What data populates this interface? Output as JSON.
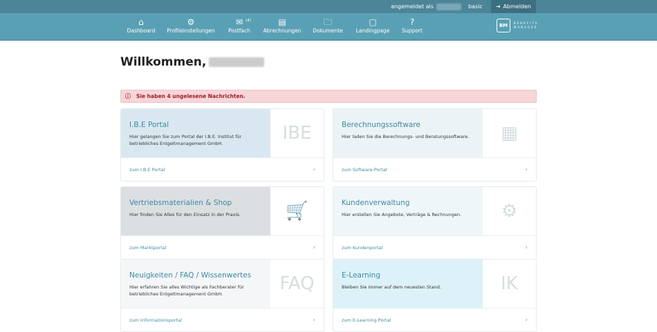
{
  "topbar": {
    "logged_in_as": "angemeldet als",
    "role": "basic",
    "logout": "Abmelden"
  },
  "nav": [
    {
      "label": "Dashboard",
      "icon": "home-icon",
      "glyph": "⌂"
    },
    {
      "label": "Profileinstellungen",
      "icon": "gears-icon",
      "glyph": "⚙"
    },
    {
      "label": "Postfach",
      "icon": "mailbox-icon",
      "glyph": "✉",
      "badge": "(4)"
    },
    {
      "label": "Abrechnungen",
      "icon": "card-icon",
      "glyph": "▤"
    },
    {
      "label": "Dokumente",
      "icon": "folder-search-icon",
      "glyph": "🗀"
    },
    {
      "label": "Landingpage",
      "icon": "window-icon",
      "glyph": "▢"
    },
    {
      "label": "Support",
      "icon": "help-icon",
      "glyph": "?"
    }
  ],
  "logo": {
    "abbr": "BM",
    "line1": "BENEFITS",
    "line2": "MANAGER"
  },
  "welcome": "Willkommen,",
  "alert": "Sie haben 4 ungelesene Nachrichten.",
  "cards": [
    {
      "title": "I.B.E Portal",
      "text": "Hier gelangen Sie zum Portal der I.B.E. Institut für betriebliches Entgeltmanagement GmbH.",
      "link": "zum I.B.E Portal",
      "color": "#d9e8f0",
      "glyph": "IBE"
    },
    {
      "title": "Berechnungssoftware",
      "text": "Hier laden Sie die Berechnungs- und Beratungssoftware.",
      "link": "zum Software-Portal",
      "color": "#ecf3f6",
      "glyph": "▦"
    },
    {
      "title": "Vertriebsmaterialien & Shop",
      "text": "Hier finden Sie Alles für den Einsatz in der Praxis.",
      "link": "zum Marktportal",
      "color": "#dcdfe1",
      "glyph": "🛒"
    },
    {
      "title": "Kundenverwaltung",
      "text": "Hier erstellen Sie Angebote, Verträge & Rechnungen.",
      "link": "zum Kundenportal",
      "color": "#eff6f9",
      "glyph": "⚙"
    },
    {
      "title": "Neuigkeiten / FAQ / Wissenwertes",
      "text": "Hier erfahren Sie alles Wichtige als Fachberater für betriebliches Entgeltmanagement GmbH.",
      "link": "zum Informationsportal",
      "color": "#f5f6f7",
      "glyph": "FAQ"
    },
    {
      "title": "E-Learning",
      "text": "Bleiben Sie immer auf dem neuesten Stand.",
      "link": "zum E-Learning Portal",
      "color": "#dcf2f8",
      "glyph": "IK"
    }
  ]
}
